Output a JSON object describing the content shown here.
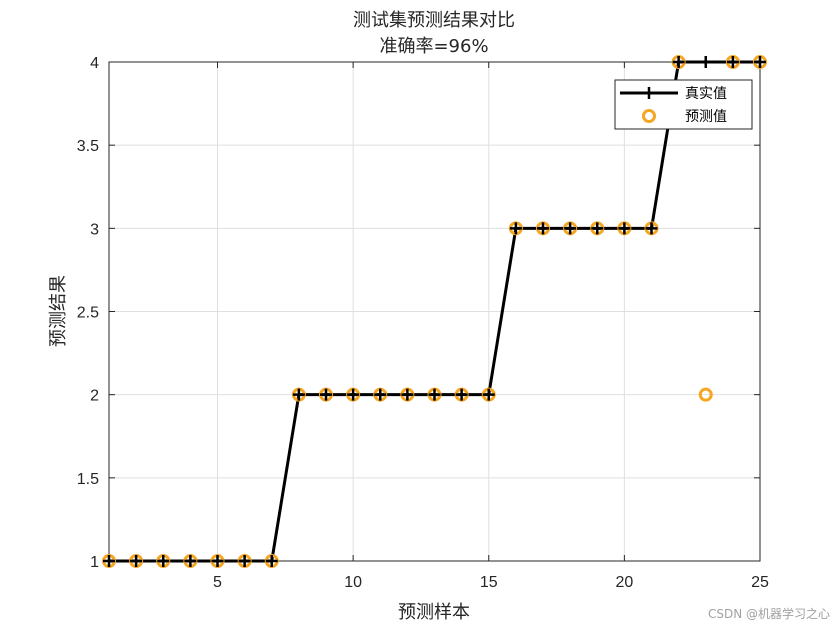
{
  "chart_data": {
    "type": "line",
    "title": [
      "测试集预测结果对比",
      "准确率=96%"
    ],
    "xlabel": "预测样本",
    "ylabel": "预测结果",
    "xlim": [
      1,
      25
    ],
    "ylim": [
      1,
      4
    ],
    "xticks": [
      5,
      10,
      15,
      20,
      25
    ],
    "yticks": [
      1,
      1.5,
      2,
      2.5,
      3,
      3.5,
      4
    ],
    "grid": true,
    "legend_position": "top-right",
    "x": [
      1,
      2,
      3,
      4,
      5,
      6,
      7,
      8,
      9,
      10,
      11,
      12,
      13,
      14,
      15,
      16,
      17,
      18,
      19,
      20,
      21,
      22,
      23,
      24,
      25
    ],
    "series": [
      {
        "name": "真实值",
        "style": "line-plus",
        "color": "#000000",
        "values": [
          1,
          1,
          1,
          1,
          1,
          1,
          1,
          2,
          2,
          2,
          2,
          2,
          2,
          2,
          2,
          3,
          3,
          3,
          3,
          3,
          3,
          4,
          4,
          4,
          4
        ]
      },
      {
        "name": "预测值",
        "style": "circle",
        "color": "#f5a623",
        "values": [
          1,
          1,
          1,
          1,
          1,
          1,
          1,
          2,
          2,
          2,
          2,
          2,
          2,
          2,
          2,
          3,
          3,
          3,
          3,
          3,
          3,
          4,
          2,
          4,
          4
        ]
      }
    ]
  },
  "watermark": "CSDN @机器学习之心"
}
